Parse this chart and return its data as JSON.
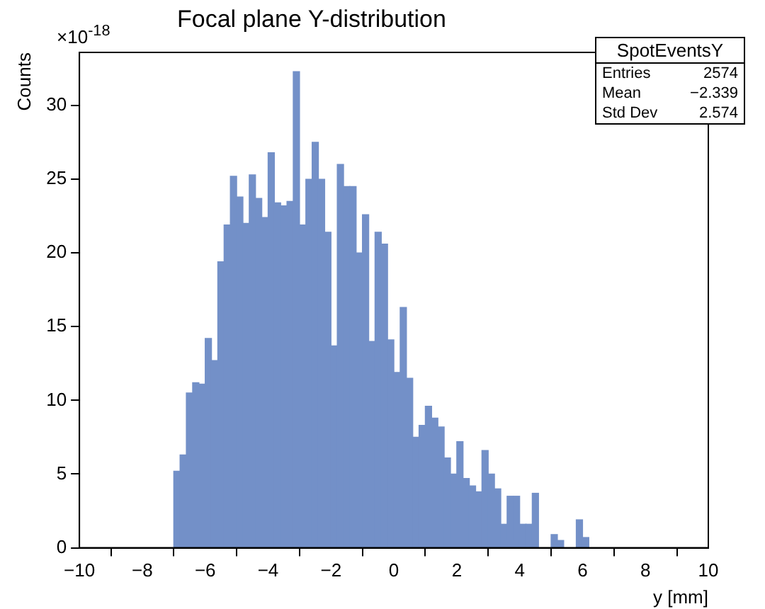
{
  "chart_data": {
    "type": "histogram",
    "title": "Focal plane Y-distribution",
    "xlabel": "y [mm]",
    "ylabel": "Counts",
    "annotations": [
      "×10$^{-18}$",
      "SpotEventsY",
      "Entries 2574",
      "Mean −2.339",
      "Std Dev 2.574"
    ],
    "bins": [
      -10,
      -9.8,
      -9.6,
      -9.4,
      -9.2,
      -9,
      -8.8,
      -8.6,
      -8.4,
      -8.2,
      -8,
      -7.8,
      -7.6,
      -7.4,
      -7.2,
      -7,
      -6.8,
      -6.6,
      -6.4,
      -6.2,
      -6,
      -5.8,
      -5.6,
      -5.4,
      -5.2,
      -5,
      -4.8,
      -4.6,
      -4.4,
      -4.2,
      -4,
      -3.8,
      -3.6,
      -3.4,
      -3.2,
      -3,
      -2.8,
      -2.6,
      -2.4,
      -2.2,
      -2,
      -1.8,
      -1.6,
      -1.4,
      -1.2,
      -1,
      -0.8,
      -0.6,
      -0.4,
      -0.2,
      0,
      0.2,
      0.4,
      0.6,
      0.8,
      1,
      1.2,
      1.4,
      1.6,
      1.8,
      2,
      2.2,
      2.4,
      2.6,
      2.8,
      3,
      3.2,
      3.4,
      3.6,
      3.8,
      4,
      4.2,
      4.4,
      4.6,
      4.8,
      5,
      5.2,
      5.4,
      5.6,
      5.8,
      6,
      6.2,
      6.4,
      6.6,
      6.8,
      7,
      7.2,
      7.4,
      7.6,
      7.8,
      8,
      8.2,
      8.4,
      8.6,
      8.8,
      9,
      9.2,
      9.4,
      9.6,
      9.8,
      10
    ],
    "values": [
      0,
      0,
      0,
      0,
      0,
      0,
      0,
      0,
      0,
      0,
      0,
      0,
      0,
      0,
      0,
      5.2,
      6.3,
      10.5,
      11.2,
      11.1,
      14.2,
      12.7,
      19.4,
      21.9,
      25.2,
      23.8,
      22.0,
      25.3,
      23.7,
      22.4,
      26.8,
      23.4,
      23.2,
      23.5,
      32.3,
      21.9,
      25.0,
      27.5,
      25.0,
      21.4,
      13.7,
      26.0,
      24.5,
      24.5,
      20.0,
      22.6,
      14.0,
      21.4,
      20.6,
      14.1,
      11.9,
      16.3,
      11.5,
      7.5,
      8.3,
      9.6,
      8.8,
      8.2,
      6.1,
      5.0,
      7.2,
      4.7,
      4.2,
      3.8,
      6.6,
      5.0,
      4.0,
      1.6,
      3.5,
      3.5,
      1.6,
      1.6,
      3.7,
      0,
      0,
      0.9,
      0.5,
      0,
      0,
      1.9,
      0.7,
      0,
      0,
      0,
      0,
      0,
      0,
      0,
      0,
      0,
      0,
      0,
      0,
      0,
      0,
      0,
      0,
      0,
      0,
      0
    ],
    "color": "#7390c8",
    "xlim": [
      -10,
      10
    ],
    "ylim": [
      0,
      33.6
    ],
    "xticks": [
      -10,
      -8,
      -6,
      -4,
      -2,
      0,
      2,
      4,
      6,
      8,
      10
    ],
    "yticks": [
      0,
      5,
      10,
      15,
      20,
      25,
      30
    ],
    "grid": false,
    "legend": false
  }
}
